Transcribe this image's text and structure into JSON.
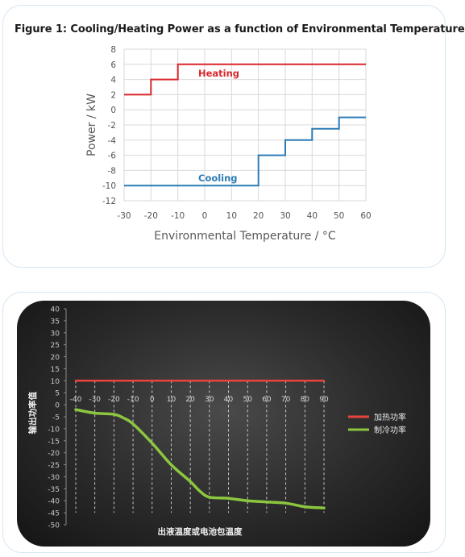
{
  "chart_data": [
    {
      "type": "line",
      "title": "Figure 1: Cooling/Heating Power as a function of Environmental Temperature",
      "xlabel": "Environmental Temperature / °C",
      "ylabel": "Power / kW",
      "xlim": [
        -30,
        60
      ],
      "ylim": [
        -12,
        8
      ],
      "x_ticks": [
        -30,
        -20,
        -10,
        0,
        10,
        20,
        30,
        40,
        50,
        60
      ],
      "y_ticks": [
        8,
        6,
        4,
        2,
        0,
        -2,
        -4,
        -6,
        -8,
        -10,
        -12
      ],
      "grid": true,
      "legend": "inline labels",
      "series": [
        {
          "name": "Heating",
          "color": "#d9262c",
          "step": true,
          "points": [
            [
              -30,
              2
            ],
            [
              -20,
              2
            ],
            [
              -20,
              4
            ],
            [
              -10,
              4
            ],
            [
              -10,
              6
            ],
            [
              60,
              6
            ]
          ]
        },
        {
          "name": "Cooling",
          "color": "#2c7bb6",
          "step": true,
          "points": [
            [
              -30,
              -10
            ],
            [
              20,
              -10
            ],
            [
              20,
              -6
            ],
            [
              30,
              -6
            ],
            [
              30,
              -4
            ],
            [
              40,
              -4
            ],
            [
              40,
              -2.5
            ],
            [
              50,
              -2.5
            ],
            [
              50,
              -1
            ],
            [
              60,
              -1
            ]
          ]
        }
      ]
    },
    {
      "type": "line",
      "title": "",
      "xlabel": "出液温度或电池包温度",
      "ylabel": "输出功率值",
      "xlim": [
        -40,
        90
      ],
      "ylim": [
        -50,
        40
      ],
      "x_ticks": [
        -40,
        -30,
        -20,
        -10,
        0,
        10,
        20,
        30,
        40,
        50,
        60,
        70,
        80,
        90
      ],
      "y_ticks": [
        40,
        35,
        30,
        25,
        20,
        15,
        10,
        5,
        0,
        -5,
        -10,
        -15,
        -20,
        -25,
        -30,
        -35,
        -40,
        -45,
        -50
      ],
      "grid": "vertical dashed",
      "legend": "right",
      "series": [
        {
          "name": "加热功率",
          "color": "#e8433c",
          "points": [
            [
              -40,
              10
            ],
            [
              90,
              10
            ]
          ]
        },
        {
          "name": "制冷功率",
          "color": "#8cc63f",
          "points": [
            [
              -40,
              -2
            ],
            [
              -30,
              -3.5
            ],
            [
              -20,
              -4
            ],
            [
              -15,
              -5.5
            ],
            [
              -10,
              -8
            ],
            [
              0,
              -16
            ],
            [
              10,
              -25
            ],
            [
              20,
              -32
            ],
            [
              25,
              -36
            ],
            [
              30,
              -38.5
            ],
            [
              40,
              -39
            ],
            [
              50,
              -40
            ],
            [
              60,
              -40.5
            ],
            [
              70,
              -41
            ],
            [
              80,
              -42.5
            ],
            [
              90,
              -43
            ]
          ]
        }
      ]
    }
  ]
}
